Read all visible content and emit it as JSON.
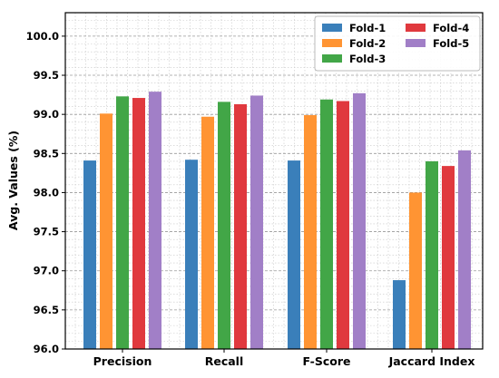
{
  "chart_data": {
    "type": "bar",
    "title": "",
    "xlabel": "",
    "ylabel": "Avg. Values (%)",
    "ylim": [
      96.0,
      100.3
    ],
    "yticks": [
      96.0,
      96.5,
      97.0,
      97.5,
      98.0,
      98.5,
      99.0,
      99.5,
      100.0
    ],
    "ytick_labels": [
      "96.0",
      "96.5",
      "97.0",
      "97.5",
      "98.0",
      "98.5",
      "99.0",
      "99.5",
      "100.0"
    ],
    "grid": true,
    "legend_position": "top-right",
    "categories": [
      "Precision",
      "Recall",
      "F-Score",
      "Jaccard Index"
    ],
    "series": [
      {
        "name": "Fold-1",
        "color": "#3a7fba",
        "values": [
          98.41,
          98.42,
          98.41,
          96.88
        ]
      },
      {
        "name": "Fold-2",
        "color": "#ff9433",
        "values": [
          99.01,
          98.97,
          98.99,
          98.0
        ]
      },
      {
        "name": "Fold-3",
        "color": "#42a647",
        "values": [
          99.23,
          99.16,
          99.19,
          98.4
        ]
      },
      {
        "name": "Fold-4",
        "color": "#e0393e",
        "values": [
          99.21,
          99.13,
          99.17,
          98.34
        ]
      },
      {
        "name": "Fold-5",
        "color": "#a17fc7",
        "values": [
          99.29,
          99.24,
          99.27,
          98.54
        ]
      }
    ],
    "legend_order": [
      0,
      3,
      1,
      4,
      2
    ]
  }
}
